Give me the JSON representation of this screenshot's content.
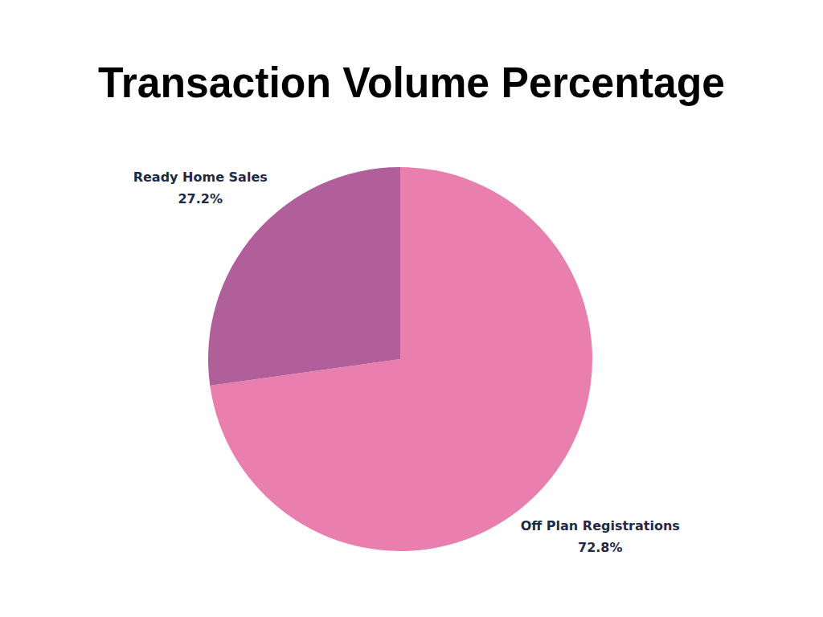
{
  "chart_data": {
    "type": "pie",
    "title": "Transaction Volume Percentage",
    "categories": [
      "Off Plan Registrations",
      "Ready Home Sales"
    ],
    "values": [
      72.8,
      27.2
    ],
    "value_labels": [
      "72.8%",
      "27.2%"
    ],
    "colors": [
      "#e97fae",
      "#b05f9b"
    ],
    "data_labels": true
  }
}
